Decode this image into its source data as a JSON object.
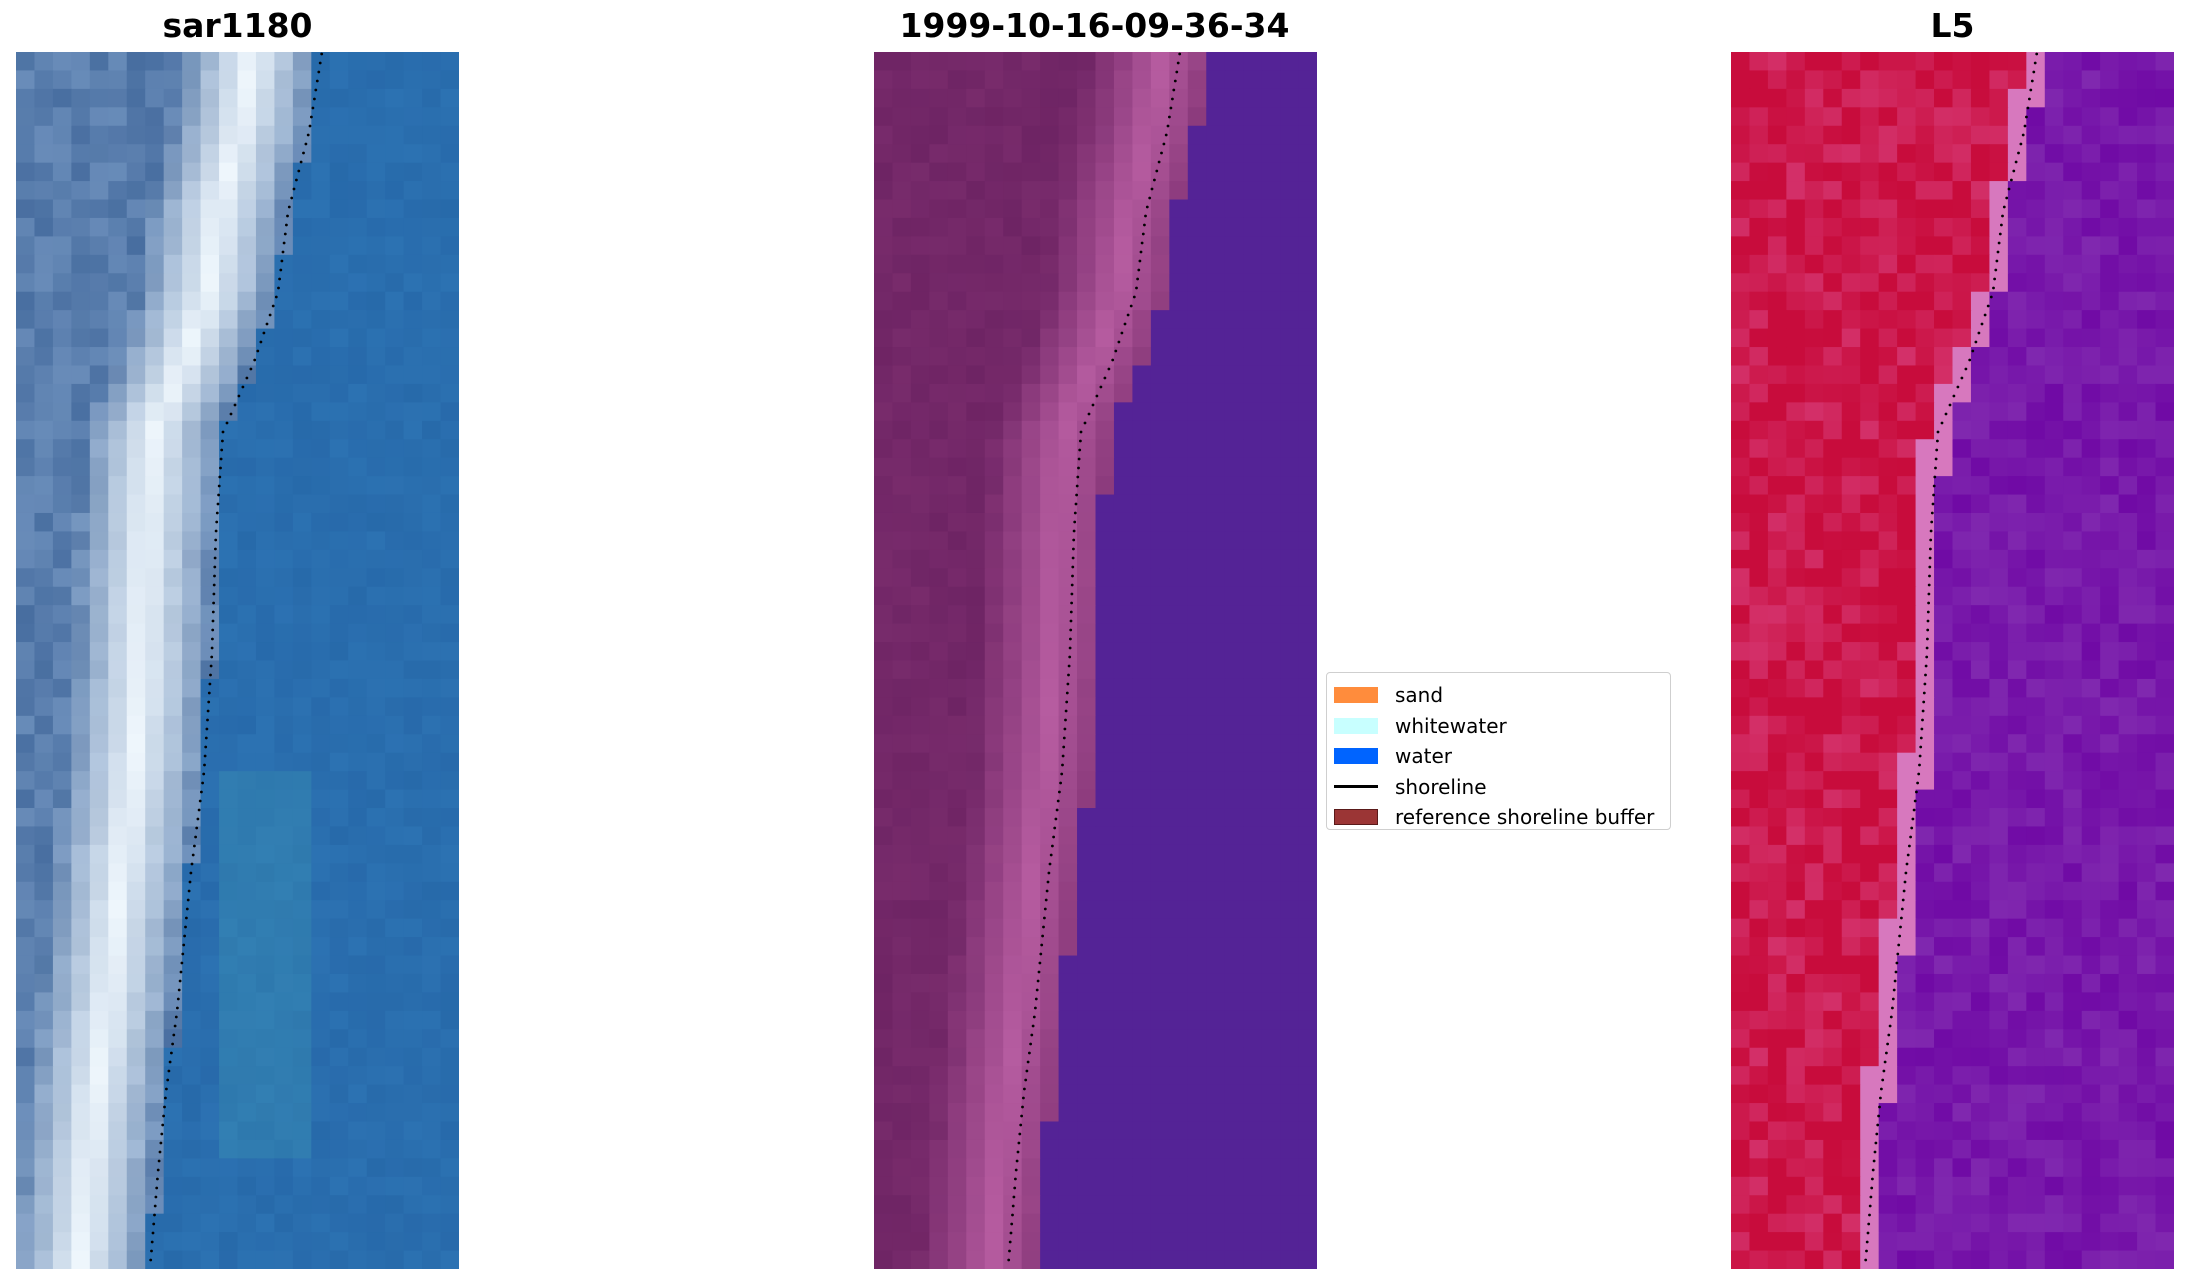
{
  "panels": [
    {
      "title": "sar1180",
      "kind": "rgb"
    },
    {
      "title": "1999-10-16-09-36-34",
      "kind": "classified"
    },
    {
      "title": "L5",
      "kind": "ndwi"
    }
  ],
  "legend": {
    "items": [
      {
        "label": "sand",
        "color": "#ff8c3c",
        "type": "patch"
      },
      {
        "label": "whitewater",
        "color": "#c8ffff",
        "type": "patch"
      },
      {
        "label": "water",
        "color": "#0064ff",
        "type": "patch"
      },
      {
        "label": "shoreline",
        "color": "#000000",
        "type": "line"
      },
      {
        "label": "reference shoreline buffer",
        "color": "#9b3535",
        "type": "patch",
        "edge": "#5a1a1a"
      }
    ]
  }
}
